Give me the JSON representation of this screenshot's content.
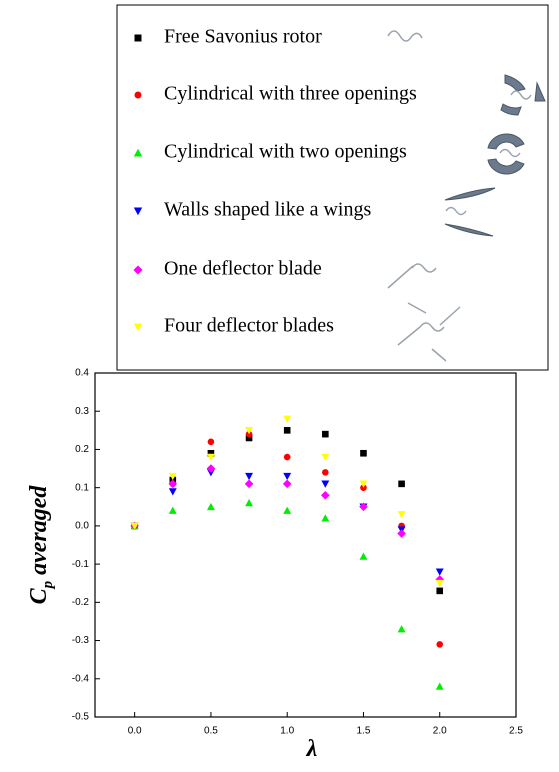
{
  "chart_data": {
    "type": "scatter",
    "xlabel": "λ",
    "ylabel": "C",
    "ylabel_subscript": "p",
    "ylabel_suffix": "averaged",
    "x": [
      0,
      0.25,
      0.5,
      0.75,
      1.0,
      1.25,
      1.5,
      1.75,
      2.0
    ],
    "series": [
      {
        "name": "Free Savonius rotor",
        "color": "#000000",
        "marker": "square",
        "values": [
          0,
          0.12,
          0.19,
          0.23,
          0.25,
          0.24,
          0.19,
          0.11,
          -0.17
        ]
      },
      {
        "name": "Cylindrical with three openings",
        "color": "#ff0000",
        "marker": "circle",
        "values": [
          0,
          0.11,
          0.22,
          0.24,
          0.18,
          0.14,
          0.1,
          0.0,
          -0.31
        ]
      },
      {
        "name": "Cylindrical with two openings",
        "color": "#00ee00",
        "marker": "triangle-up",
        "values": [
          0,
          0.04,
          0.05,
          0.06,
          0.04,
          0.02,
          -0.08,
          -0.27,
          -0.42
        ]
      },
      {
        "name": "Walls shaped like a wings",
        "color": "#0000ff",
        "marker": "triangle-down",
        "values": [
          0,
          0.09,
          0.14,
          0.13,
          0.13,
          0.11,
          0.05,
          -0.01,
          -0.12
        ]
      },
      {
        "name": "One deflector blade",
        "color": "#ff00ff",
        "marker": "diamond",
        "values": [
          0,
          0.11,
          0.15,
          0.11,
          0.11,
          0.08,
          0.05,
          -0.02,
          -0.14
        ]
      },
      {
        "name": "Four deflector blades",
        "color": "#ffff00",
        "marker": "triangle-down",
        "values": [
          0,
          0.13,
          0.18,
          0.25,
          0.28,
          0.18,
          0.11,
          0.03,
          -0.15
        ]
      }
    ],
    "xlim": [
      -0.26,
      2.5
    ],
    "xticks": [
      {
        "value": 0,
        "label": "0.0"
      },
      0.5,
      {
        "value": 1,
        "label": "1.0"
      },
      1.5,
      {
        "value": 2,
        "label": "2.0"
      },
      2.5
    ],
    "ylim": [
      -0.5,
      0.4
    ],
    "yticks": [
      0.4,
      0.3,
      0.2,
      0.1,
      {
        "value": 0,
        "label": "0.0"
      },
      -0.1,
      -0.2,
      -0.3,
      -0.4,
      -0.5
    ],
    "grid": false
  }
}
